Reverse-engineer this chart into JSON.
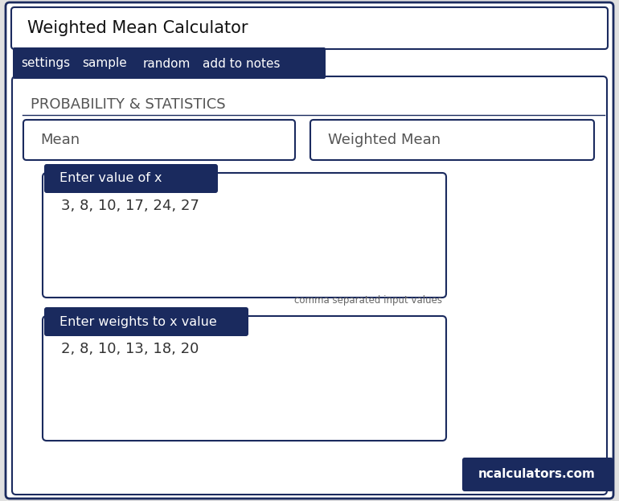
{
  "title": "Weighted Mean Calculator",
  "nav_items": [
    "settings",
    "sample",
    "random",
    "add to notes"
  ],
  "section_label": "PROBABILITY & STATISTICS",
  "button1": "Mean",
  "button2": "Weighted Mean",
  "label1": "Enter value of x",
  "value1": "3, 8, 10, 17, 24, 27",
  "hint1": "comma separated input values",
  "label2": "Enter weights to x value",
  "value2": "2, 8, 10, 13, 18, 20",
  "footer": "ncalculators.com",
  "bg_color": "#ffffff",
  "nav_bg": "#1a2a5e",
  "nav_text": "#ffffff",
  "title_border": "#1a2a5e",
  "input_border": "#1a2a5e",
  "label_bg": "#1a2a5e",
  "label_text": "#ffffff",
  "input_text": "#333333",
  "hint_text": "#666666",
  "footer_bg": "#1a2a5e",
  "footer_text": "#ffffff",
  "outer_bg": "#e0e0e0"
}
